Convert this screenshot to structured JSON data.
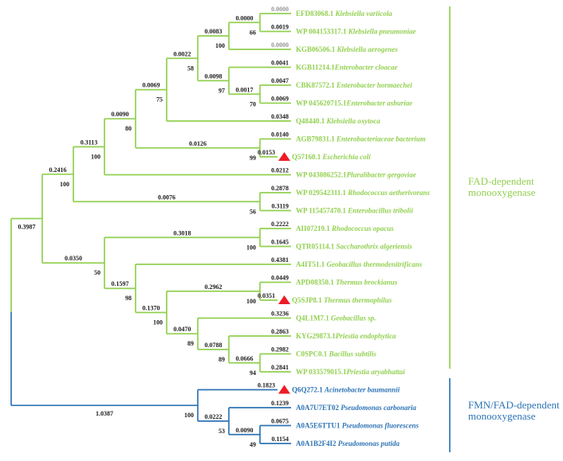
{
  "colors": {
    "green": "#92d050",
    "blue": "#2e74b5",
    "black": "#1a1a1a",
    "gray": "#969696",
    "red": "#ed1c24"
  },
  "groups": {
    "fad": {
      "label": "FAD-dependent monooxygenase",
      "color": "green"
    },
    "fmn": {
      "label": "FMN/FAD-dependent monooxygenase",
      "color": "blue"
    }
  },
  "tree": {
    "children": [
      {
        "branch_length": "0.3987",
        "below": true,
        "color": "green",
        "children": [
          {
            "branch_length": "0.2416",
            "bootstrap": "100",
            "children": [
              {
                "branch_length": "0.3113",
                "bootstrap": "100",
                "children": [
                  {
                    "branch_length": "0.0090",
                    "bootstrap": "80",
                    "children": [
                      {
                        "branch_length": "0.0069",
                        "bootstrap": "75",
                        "children": [
                          {
                            "branch_length": "0.0022",
                            "bootstrap": "58",
                            "children": [
                              {
                                "branch_length": "0.0083",
                                "bootstrap": "100",
                                "children": [
                                  {
                                    "branch_length": "0.0000",
                                    "bootstrap": "66",
                                    "children": [
                                      {
                                        "branch_length": "0.0000",
                                        "gray": true,
                                        "accession": "EFD83068.1",
                                        "species": "Klebsiella variicola"
                                      },
                                      {
                                        "branch_length": "0.0019",
                                        "accession": "WP 004153317.1",
                                        "species": "Klebsiella pneumoniae"
                                      }
                                    ]
                                  },
                                  {
                                    "branch_length": "0.0000",
                                    "gray": true,
                                    "accession": "KGB06506.1",
                                    "species": "Klebsiella aerogenes"
                                  }
                                ]
                              },
                              {
                                "branch_length": "0.0098",
                                "bootstrap": "97",
                                "children": [
                                  {
                                    "branch_length": "0.0041",
                                    "accession": "KGB11214.1",
                                    "species": "Enterobacter cloacae",
                                    "no_space": true
                                  },
                                  {
                                    "branch_length": "0.0017",
                                    "bootstrap": "70",
                                    "children": [
                                      {
                                        "branch_length": "0.0047",
                                        "accession": "CBK87572.1",
                                        "species": "Enterobacter hormaechei"
                                      },
                                      {
                                        "branch_length": "0.0069",
                                        "accession": "WP 045620715.1",
                                        "species": "Enterobacter asburiae",
                                        "no_space": true
                                      }
                                    ]
                                  }
                                ]
                              }
                            ]
                          },
                          {
                            "branch_length": "0.0348",
                            "accession": "Q48440.1",
                            "species": "Klebsiella oxytoca"
                          }
                        ]
                      },
                      {
                        "branch_length": "0.0126",
                        "bootstrap": "99",
                        "children": [
                          {
                            "branch_length": "0.0140",
                            "accession": "AGB79831.1",
                            "species": "Enterobacteriaceae bacterium"
                          },
                          {
                            "branch_length": "0.0153",
                            "marker": "red-triangle",
                            "accession": "Q57160.1",
                            "species": "Escherichia coli"
                          }
                        ]
                      }
                    ]
                  },
                  {
                    "branch_length": "0.0212",
                    "accession": "WP 043086252.1",
                    "species": "Pluralibacter gergoviae",
                    "no_space": true
                  }
                ]
              },
              {
                "branch_length": "0.0076",
                "bootstrap": "56",
                "children": [
                  {
                    "branch_length": "0.2878",
                    "accession": "WP 029542311.1",
                    "species": "Rhodococcus aetherivorans"
                  },
                  {
                    "branch_length": "0.3119",
                    "accession": "WP 115457470.1",
                    "species": "Enterobacillus tribolii"
                  }
                ]
              }
            ]
          },
          {
            "branch_length": "0.0350",
            "bootstrap": "50",
            "children": [
              {
                "branch_length": "0.3018",
                "bootstrap": "100",
                "children": [
                  {
                    "branch_length": "0.2222",
                    "accession": "AII07219.1",
                    "species": "Rhodococcus opacus"
                  },
                  {
                    "branch_length": "0.1645",
                    "accession": "QTR05114.1",
                    "species": "Saccharothrix algeriensis"
                  }
                ]
              },
              {
                "branch_length": "0.1597",
                "bootstrap": "98",
                "children": [
                  {
                    "branch_length": "0.4381",
                    "accession": "A4IT51.1",
                    "species": "Geobacillus thermodenitrificans"
                  },
                  {
                    "branch_length": "0.1370",
                    "bootstrap": "100",
                    "children": [
                      {
                        "branch_length": "0.2962",
                        "bootstrap": "100",
                        "children": [
                          {
                            "branch_length": "0.0449",
                            "accession": "APD08350.1",
                            "species": "Thermus brockianus"
                          },
                          {
                            "branch_length": "0.0351",
                            "marker": "red-triangle",
                            "accession": "Q5SJP8.1",
                            "species": "Thermus thermophilus"
                          }
                        ]
                      },
                      {
                        "branch_length": "0.0470",
                        "bootstrap": "89",
                        "children": [
                          {
                            "branch_length": "0.3236",
                            "accession": "Q4L1M7.1",
                            "species": "Geobacillus sp."
                          },
                          {
                            "branch_length": "0.0788",
                            "bootstrap": "89",
                            "children": [
                              {
                                "branch_length": "0.2863",
                                "accession": "KYG29873.1",
                                "species": "Priestia endophytica",
                                "no_space": true
                              },
                              {
                                "branch_length": "0.0666",
                                "bootstrap": "94",
                                "children": [
                                  {
                                    "branch_length": "0.2982",
                                    "accession": "C0SPC0.1",
                                    "species": "Bacillus subtilis"
                                  },
                                  {
                                    "branch_length": "0.2841",
                                    "accession": "WP 033579015.1",
                                    "species": "Priestia aryabhattai",
                                    "no_space": true
                                  }
                                ]
                              }
                            ]
                          }
                        ]
                      }
                    ]
                  }
                ]
              }
            ]
          }
        ]
      },
      {
        "branch_length": "1.0387",
        "below": true,
        "bootstrap": "100",
        "color": "blue",
        "children": [
          {
            "branch_length": "0.1823",
            "marker": "red-triangle",
            "accession": "Q6Q272.1",
            "species": "Acinetobacter baumannii"
          },
          {
            "branch_length": "0.0222",
            "bootstrap": "53",
            "children": [
              {
                "branch_length": "0.1239",
                "accession": "A0A7U7ET02",
                "species": "Pseudomonas carbonaria"
              },
              {
                "branch_length": "0.0090",
                "bootstrap": "49",
                "children": [
                  {
                    "branch_length": "0.0675",
                    "accession": "A0A5E6TTU1",
                    "species": "Pseudomonas fluorescens"
                  },
                  {
                    "branch_length": "0.1154",
                    "accession": "A0A1B2F4I2",
                    "species": "Pseudomonas putida"
                  }
                ]
              }
            ]
          }
        ]
      }
    ]
  }
}
